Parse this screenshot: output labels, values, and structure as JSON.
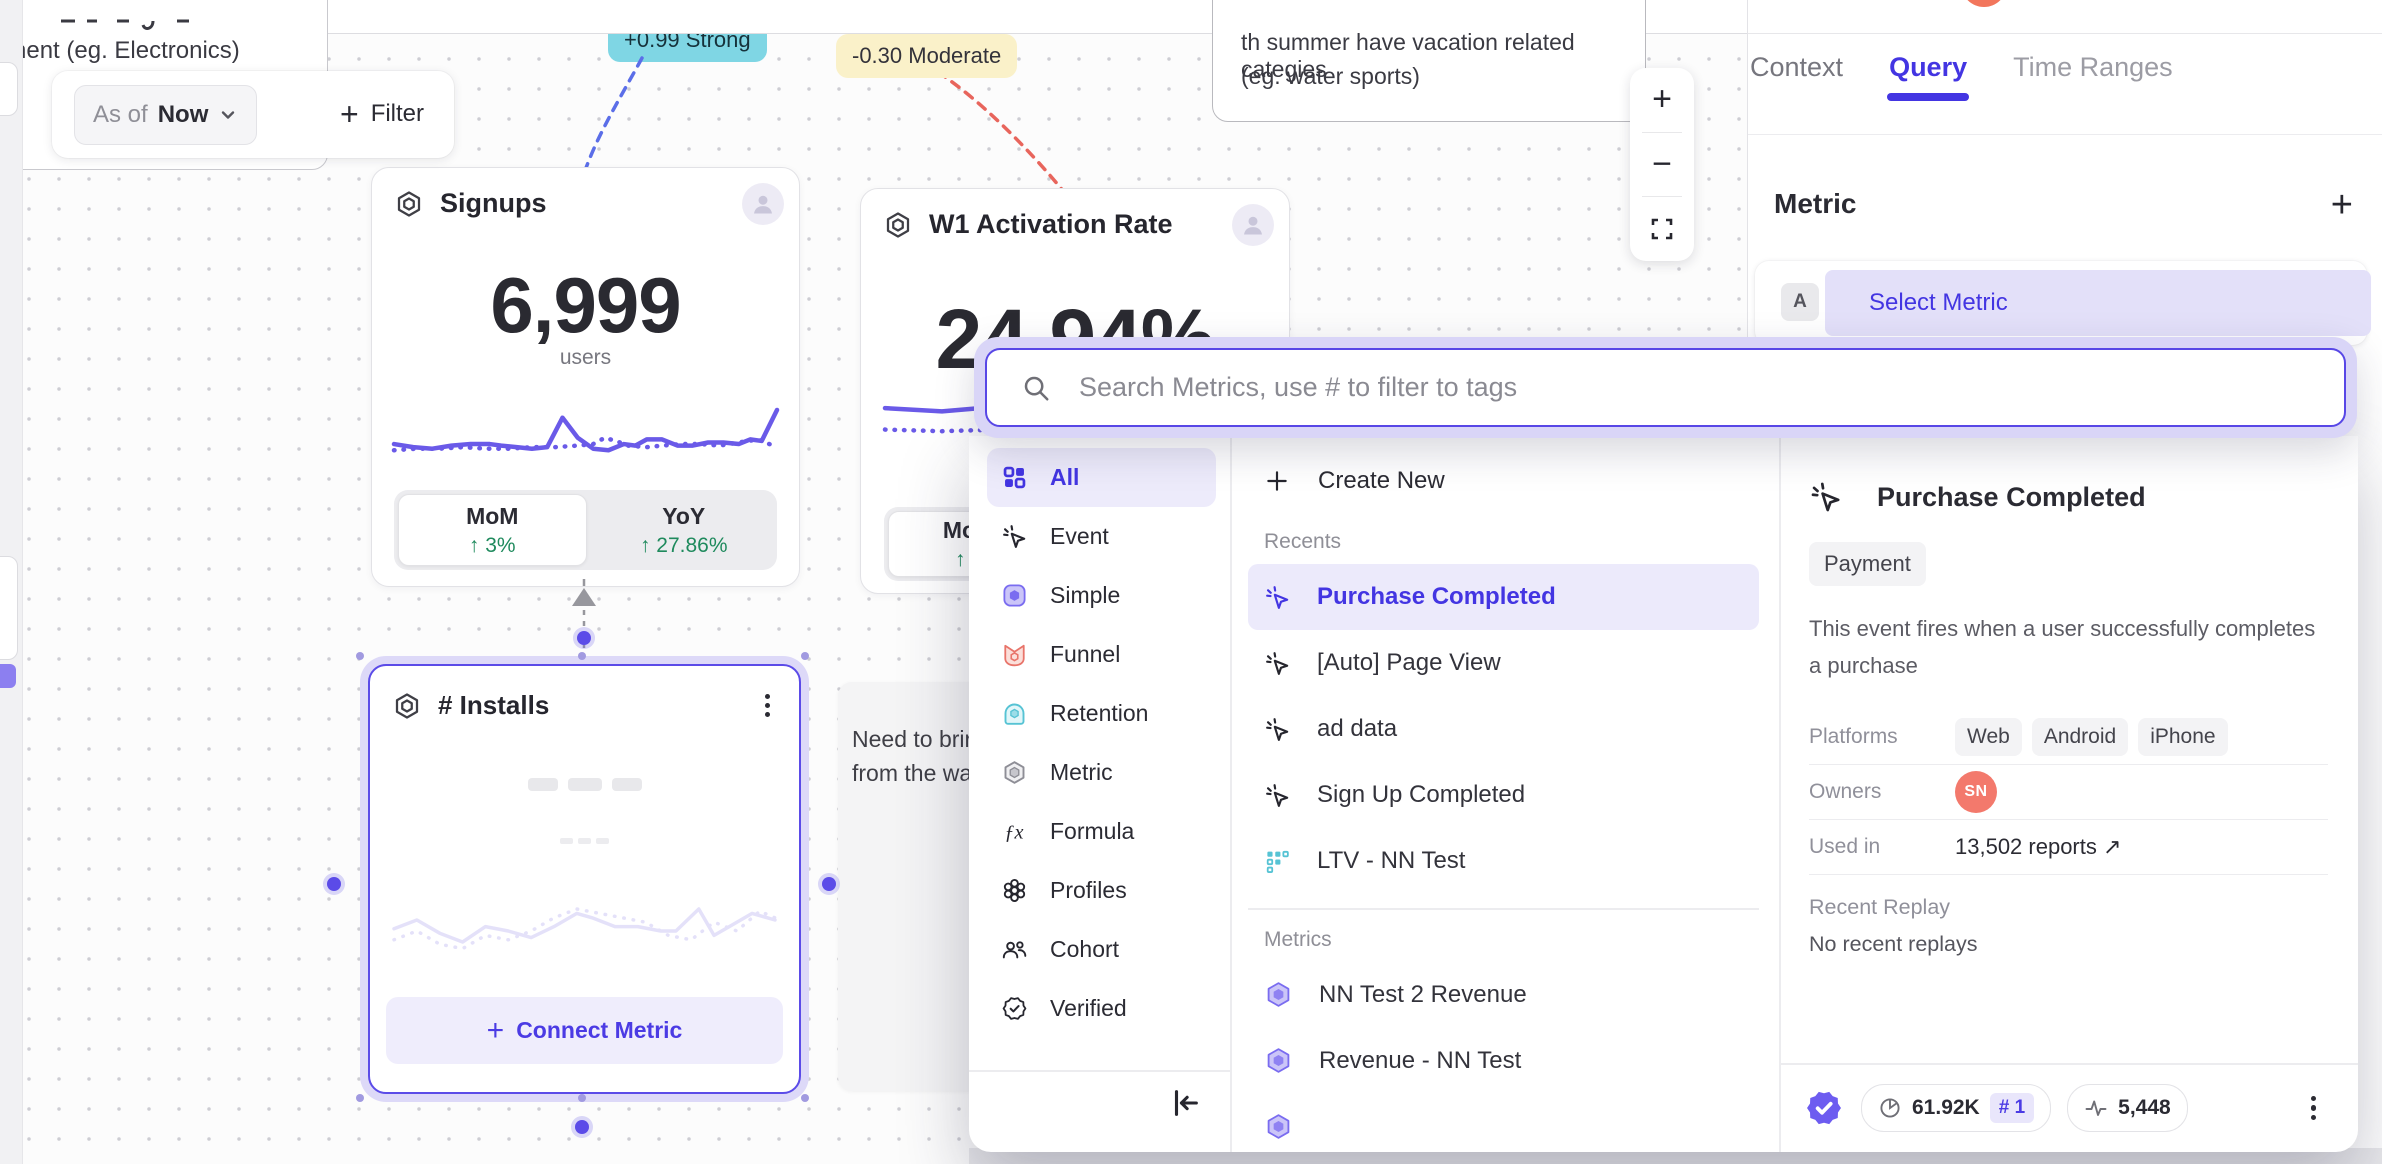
{
  "toolbar": {
    "as_of_label": "As of",
    "as_of_value": "Now",
    "filter_label": "Filter"
  },
  "canvas": {
    "note_topleft_line": "nent  (eg. Electronics)",
    "note_topright_line1": "th summer have vacation related categies",
    "note_topright_line2": "(eg. water sports)",
    "note_mid_line1": "Need to brir",
    "note_mid_line2": "from the wa",
    "badge_strong": "+0.99 Strong",
    "badge_moderate": "-0.30 Moderate",
    "cards": {
      "signups": {
        "title": "Signups",
        "value": "6,999",
        "unit": "users",
        "mom_label": "MoM",
        "mom_delta": "↑ 3%",
        "yoy_label": "YoY",
        "yoy_delta": "↑ 27.86%",
        "spark_solid": [
          [
            0,
            9
          ],
          [
            5,
            7
          ],
          [
            10,
            6
          ],
          [
            15,
            8
          ],
          [
            20,
            9
          ],
          [
            25,
            9
          ],
          [
            28,
            8
          ],
          [
            32,
            7
          ],
          [
            36,
            6
          ],
          [
            40,
            7
          ],
          [
            44,
            26
          ],
          [
            48,
            13
          ],
          [
            52,
            6
          ],
          [
            56,
            5
          ],
          [
            60,
            9
          ],
          [
            63,
            8
          ],
          [
            66,
            12
          ],
          [
            70,
            12
          ],
          [
            74,
            8
          ],
          [
            78,
            8
          ],
          [
            82,
            10
          ],
          [
            86,
            10
          ],
          [
            90,
            9
          ],
          [
            93,
            12
          ],
          [
            96,
            11
          ],
          [
            100,
            31
          ]
        ],
        "spark_dotted": [
          [
            0,
            5
          ],
          [
            6,
            6
          ],
          [
            12,
            6
          ],
          [
            18,
            7
          ],
          [
            24,
            6
          ],
          [
            30,
            6
          ],
          [
            36,
            7
          ],
          [
            42,
            7
          ],
          [
            48,
            8
          ],
          [
            52,
            9
          ],
          [
            55,
            13
          ],
          [
            58,
            11
          ],
          [
            61,
            8
          ],
          [
            66,
            7
          ],
          [
            70,
            8
          ],
          [
            75,
            9
          ],
          [
            80,
            9
          ],
          [
            85,
            8
          ],
          [
            90,
            10
          ],
          [
            95,
            12
          ],
          [
            100,
            7
          ]
        ]
      },
      "activation": {
        "title": "W1 Activation Rate",
        "value": "24.94%",
        "mom_label": "MoM",
        "mom_delta": "↑ 3",
        "spark_solid": [
          [
            0,
            26
          ],
          [
            15,
            24
          ],
          [
            30,
            27
          ],
          [
            45,
            25
          ],
          [
            60,
            23
          ],
          [
            75,
            18
          ],
          [
            90,
            14
          ],
          [
            100,
            12
          ]
        ],
        "spark_dotted": [
          [
            0,
            13
          ],
          [
            15,
            12
          ],
          [
            30,
            13
          ],
          [
            45,
            11
          ],
          [
            60,
            9
          ],
          [
            75,
            8
          ],
          [
            90,
            7
          ]
        ]
      },
      "installs": {
        "title": "# Installs",
        "connect_label": "Connect Metric",
        "spark_solid": [
          [
            0,
            16
          ],
          [
            6,
            20
          ],
          [
            12,
            14
          ],
          [
            18,
            10
          ],
          [
            24,
            17
          ],
          [
            30,
            15
          ],
          [
            36,
            12
          ],
          [
            42,
            17
          ],
          [
            48,
            23
          ],
          [
            52,
            21
          ],
          [
            58,
            17
          ],
          [
            64,
            17
          ],
          [
            70,
            15
          ],
          [
            74,
            15
          ],
          [
            80,
            25
          ],
          [
            84,
            13
          ],
          [
            88,
            17
          ],
          [
            94,
            23
          ],
          [
            100,
            20
          ]
        ],
        "spark_dotted": [
          [
            0,
            11
          ],
          [
            6,
            15
          ],
          [
            12,
            9
          ],
          [
            18,
            7
          ],
          [
            24,
            13
          ],
          [
            30,
            11
          ],
          [
            36,
            15
          ],
          [
            42,
            21
          ],
          [
            48,
            25
          ],
          [
            54,
            23
          ],
          [
            60,
            21
          ],
          [
            66,
            19
          ],
          [
            72,
            13
          ],
          [
            78,
            11
          ],
          [
            84,
            19
          ],
          [
            90,
            15
          ],
          [
            96,
            24
          ],
          [
            100,
            21
          ]
        ]
      }
    }
  },
  "side_panel": {
    "tabs": [
      {
        "label": "Context",
        "active": false
      },
      {
        "label": "Query",
        "active": true
      },
      {
        "label": "Time Ranges",
        "active": false
      }
    ],
    "metric_heading": "Metric",
    "add_label": "+",
    "row_letter": "A",
    "row_placeholder": "Select Metric"
  },
  "metric_picker": {
    "search_placeholder": "Search Metrics, use # to filter to tags",
    "categories": [
      {
        "icon": "grid",
        "label": "All",
        "selected": true
      },
      {
        "icon": "event",
        "label": "Event"
      },
      {
        "icon": "simple",
        "label": "Simple"
      },
      {
        "icon": "funnel",
        "label": "Funnel"
      },
      {
        "icon": "retention",
        "label": "Retention"
      },
      {
        "icon": "metric",
        "label": "Metric"
      },
      {
        "icon": "formula",
        "label": "Formula"
      },
      {
        "icon": "profiles",
        "label": "Profiles"
      },
      {
        "icon": "cohort",
        "label": "Cohort"
      },
      {
        "icon": "verified",
        "label": "Verified"
      }
    ],
    "create_new_label": "Create New",
    "recents_label": "Recents",
    "recents": [
      {
        "icon": "event",
        "label": "Purchase Completed",
        "selected": true
      },
      {
        "icon": "event",
        "label": "[Auto] Page View",
        "selected": false
      },
      {
        "icon": "event",
        "label": "ad data",
        "selected": false
      },
      {
        "icon": "event",
        "label": "Sign Up Completed",
        "selected": false
      },
      {
        "icon": "ltv",
        "label": "LTV - NN Test",
        "selected": false
      }
    ],
    "metrics_label": "Metrics",
    "metrics": [
      {
        "icon": "metric_purple",
        "label": "NN Test 2 Revenue"
      },
      {
        "icon": "metric_purple",
        "label": "Revenue - NN Test"
      },
      {
        "icon": "metric_purple",
        "label": ""
      }
    ],
    "detail": {
      "title": "Purchase Completed",
      "tag": "Payment",
      "description": "This event fires when a user successfully completes a purchase",
      "platforms_label": "Platforms",
      "platforms": [
        "Web",
        "Android",
        "iPhone"
      ],
      "owners_label": "Owners",
      "owner_initials": "SN",
      "used_in_label": "Used in",
      "used_in_value": "13,502 reports ↗",
      "replay_label": "Recent Replay",
      "replay_value": "No recent replays"
    },
    "footer": {
      "volume": "61.92K",
      "rank": "# 1",
      "events": "5,448"
    }
  },
  "colors": {
    "accent": "#4B3BE4",
    "chart": "#6A5AE8",
    "green": "#1F8A5D",
    "badge_cyan": "#7FD6E4",
    "badge_yellow": "#FAF1C9",
    "coral": "#F3796C"
  }
}
